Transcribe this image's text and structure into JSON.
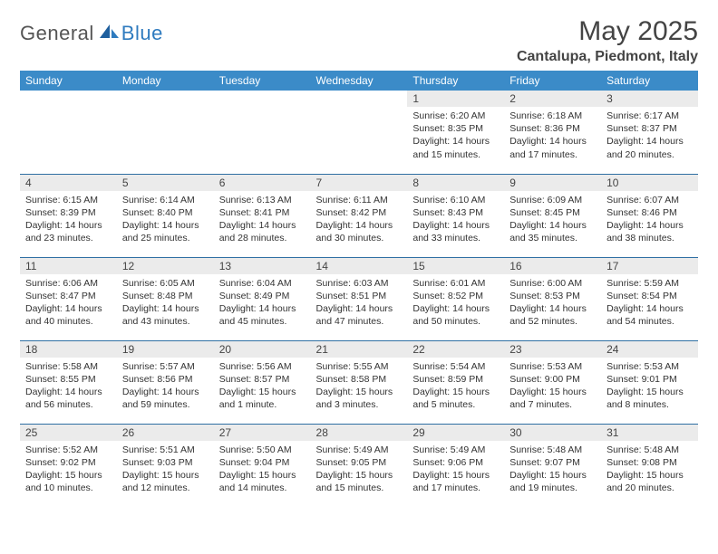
{
  "logo": {
    "general": "General",
    "blue": "Blue"
  },
  "title": "May 2025",
  "location": "Cantalupa, Piedmont, Italy",
  "colors": {
    "header_bg": "#3b8bc8",
    "row_divider": "#2f6fa3",
    "daynum_bg": "#ebebeb",
    "text": "#333333"
  },
  "days_of_week": [
    "Sunday",
    "Monday",
    "Tuesday",
    "Wednesday",
    "Thursday",
    "Friday",
    "Saturday"
  ],
  "weeks": [
    [
      null,
      null,
      null,
      null,
      {
        "n": "1",
        "sr": "Sunrise: 6:20 AM",
        "ss": "Sunset: 8:35 PM",
        "dl1": "Daylight: 14 hours",
        "dl2": "and 15 minutes."
      },
      {
        "n": "2",
        "sr": "Sunrise: 6:18 AM",
        "ss": "Sunset: 8:36 PM",
        "dl1": "Daylight: 14 hours",
        "dl2": "and 17 minutes."
      },
      {
        "n": "3",
        "sr": "Sunrise: 6:17 AM",
        "ss": "Sunset: 8:37 PM",
        "dl1": "Daylight: 14 hours",
        "dl2": "and 20 minutes."
      }
    ],
    [
      {
        "n": "4",
        "sr": "Sunrise: 6:15 AM",
        "ss": "Sunset: 8:39 PM",
        "dl1": "Daylight: 14 hours",
        "dl2": "and 23 minutes."
      },
      {
        "n": "5",
        "sr": "Sunrise: 6:14 AM",
        "ss": "Sunset: 8:40 PM",
        "dl1": "Daylight: 14 hours",
        "dl2": "and 25 minutes."
      },
      {
        "n": "6",
        "sr": "Sunrise: 6:13 AM",
        "ss": "Sunset: 8:41 PM",
        "dl1": "Daylight: 14 hours",
        "dl2": "and 28 minutes."
      },
      {
        "n": "7",
        "sr": "Sunrise: 6:11 AM",
        "ss": "Sunset: 8:42 PM",
        "dl1": "Daylight: 14 hours",
        "dl2": "and 30 minutes."
      },
      {
        "n": "8",
        "sr": "Sunrise: 6:10 AM",
        "ss": "Sunset: 8:43 PM",
        "dl1": "Daylight: 14 hours",
        "dl2": "and 33 minutes."
      },
      {
        "n": "9",
        "sr": "Sunrise: 6:09 AM",
        "ss": "Sunset: 8:45 PM",
        "dl1": "Daylight: 14 hours",
        "dl2": "and 35 minutes."
      },
      {
        "n": "10",
        "sr": "Sunrise: 6:07 AM",
        "ss": "Sunset: 8:46 PM",
        "dl1": "Daylight: 14 hours",
        "dl2": "and 38 minutes."
      }
    ],
    [
      {
        "n": "11",
        "sr": "Sunrise: 6:06 AM",
        "ss": "Sunset: 8:47 PM",
        "dl1": "Daylight: 14 hours",
        "dl2": "and 40 minutes."
      },
      {
        "n": "12",
        "sr": "Sunrise: 6:05 AM",
        "ss": "Sunset: 8:48 PM",
        "dl1": "Daylight: 14 hours",
        "dl2": "and 43 minutes."
      },
      {
        "n": "13",
        "sr": "Sunrise: 6:04 AM",
        "ss": "Sunset: 8:49 PM",
        "dl1": "Daylight: 14 hours",
        "dl2": "and 45 minutes."
      },
      {
        "n": "14",
        "sr": "Sunrise: 6:03 AM",
        "ss": "Sunset: 8:51 PM",
        "dl1": "Daylight: 14 hours",
        "dl2": "and 47 minutes."
      },
      {
        "n": "15",
        "sr": "Sunrise: 6:01 AM",
        "ss": "Sunset: 8:52 PM",
        "dl1": "Daylight: 14 hours",
        "dl2": "and 50 minutes."
      },
      {
        "n": "16",
        "sr": "Sunrise: 6:00 AM",
        "ss": "Sunset: 8:53 PM",
        "dl1": "Daylight: 14 hours",
        "dl2": "and 52 minutes."
      },
      {
        "n": "17",
        "sr": "Sunrise: 5:59 AM",
        "ss": "Sunset: 8:54 PM",
        "dl1": "Daylight: 14 hours",
        "dl2": "and 54 minutes."
      }
    ],
    [
      {
        "n": "18",
        "sr": "Sunrise: 5:58 AM",
        "ss": "Sunset: 8:55 PM",
        "dl1": "Daylight: 14 hours",
        "dl2": "and 56 minutes."
      },
      {
        "n": "19",
        "sr": "Sunrise: 5:57 AM",
        "ss": "Sunset: 8:56 PM",
        "dl1": "Daylight: 14 hours",
        "dl2": "and 59 minutes."
      },
      {
        "n": "20",
        "sr": "Sunrise: 5:56 AM",
        "ss": "Sunset: 8:57 PM",
        "dl1": "Daylight: 15 hours",
        "dl2": "and 1 minute."
      },
      {
        "n": "21",
        "sr": "Sunrise: 5:55 AM",
        "ss": "Sunset: 8:58 PM",
        "dl1": "Daylight: 15 hours",
        "dl2": "and 3 minutes."
      },
      {
        "n": "22",
        "sr": "Sunrise: 5:54 AM",
        "ss": "Sunset: 8:59 PM",
        "dl1": "Daylight: 15 hours",
        "dl2": "and 5 minutes."
      },
      {
        "n": "23",
        "sr": "Sunrise: 5:53 AM",
        "ss": "Sunset: 9:00 PM",
        "dl1": "Daylight: 15 hours",
        "dl2": "and 7 minutes."
      },
      {
        "n": "24",
        "sr": "Sunrise: 5:53 AM",
        "ss": "Sunset: 9:01 PM",
        "dl1": "Daylight: 15 hours",
        "dl2": "and 8 minutes."
      }
    ],
    [
      {
        "n": "25",
        "sr": "Sunrise: 5:52 AM",
        "ss": "Sunset: 9:02 PM",
        "dl1": "Daylight: 15 hours",
        "dl2": "and 10 minutes."
      },
      {
        "n": "26",
        "sr": "Sunrise: 5:51 AM",
        "ss": "Sunset: 9:03 PM",
        "dl1": "Daylight: 15 hours",
        "dl2": "and 12 minutes."
      },
      {
        "n": "27",
        "sr": "Sunrise: 5:50 AM",
        "ss": "Sunset: 9:04 PM",
        "dl1": "Daylight: 15 hours",
        "dl2": "and 14 minutes."
      },
      {
        "n": "28",
        "sr": "Sunrise: 5:49 AM",
        "ss": "Sunset: 9:05 PM",
        "dl1": "Daylight: 15 hours",
        "dl2": "and 15 minutes."
      },
      {
        "n": "29",
        "sr": "Sunrise: 5:49 AM",
        "ss": "Sunset: 9:06 PM",
        "dl1": "Daylight: 15 hours",
        "dl2": "and 17 minutes."
      },
      {
        "n": "30",
        "sr": "Sunrise: 5:48 AM",
        "ss": "Sunset: 9:07 PM",
        "dl1": "Daylight: 15 hours",
        "dl2": "and 19 minutes."
      },
      {
        "n": "31",
        "sr": "Sunrise: 5:48 AM",
        "ss": "Sunset: 9:08 PM",
        "dl1": "Daylight: 15 hours",
        "dl2": "and 20 minutes."
      }
    ]
  ]
}
